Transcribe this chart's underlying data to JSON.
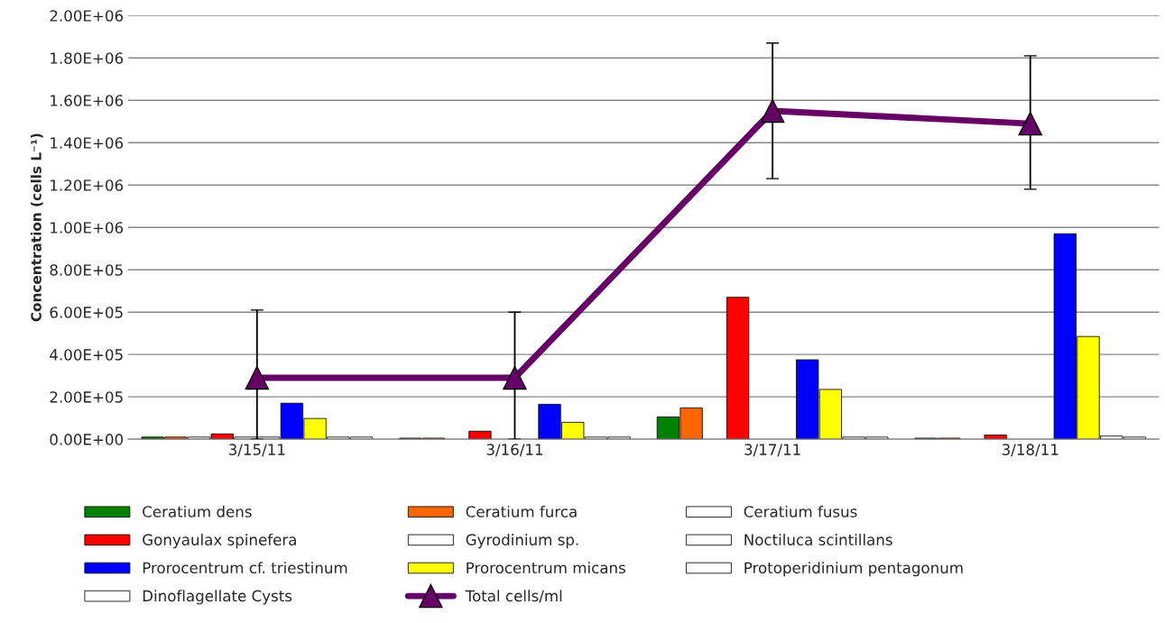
{
  "chart_data": {
    "type": "bar",
    "ylabel": "Concentration (cells L⁻¹)",
    "categories": [
      "3/15/11",
      "3/16/11",
      "3/17/11",
      "3/18/11"
    ],
    "ylim": [
      0,
      2000000
    ],
    "yticks": [
      {
        "value": 0,
        "label": "0.00E+00"
      },
      {
        "value": 200000,
        "label": "2.00E+05"
      },
      {
        "value": 400000,
        "label": "4.00E+05"
      },
      {
        "value": 600000,
        "label": "6.00E+05"
      },
      {
        "value": 800000,
        "label": "8.00E+05"
      },
      {
        "value": 1000000,
        "label": "1.00E+06"
      },
      {
        "value": 1200000,
        "label": "1.20E+06"
      },
      {
        "value": 1400000,
        "label": "1.40E+06"
      },
      {
        "value": 1600000,
        "label": "1.60E+06"
      },
      {
        "value": 1800000,
        "label": "1.80E+06"
      },
      {
        "value": 2000000,
        "label": "2.00E+06"
      }
    ],
    "grid": "y",
    "legend": "bottom",
    "series": [
      {
        "name": "Ceratium dens",
        "color": "#008000",
        "values": [
          10000,
          5000,
          105000,
          5000
        ]
      },
      {
        "name": "Ceratium furca",
        "color": "#ff6600",
        "values": [
          10000,
          5000,
          148000,
          5000
        ]
      },
      {
        "name": "Ceratium fusus",
        "color": "#ffffff",
        "values": [
          10000,
          null,
          null,
          null
        ]
      },
      {
        "name": "Gonyaulax spinefera",
        "color": "#ff0000",
        "values": [
          25000,
          38000,
          670000,
          20000
        ]
      },
      {
        "name": "Gyrodinium sp.",
        "color": "#ffffff",
        "values": [
          10000,
          null,
          null,
          null
        ]
      },
      {
        "name": "Noctiluca scintillans",
        "color": "#ffffff",
        "values": [
          10000,
          null,
          null,
          null
        ]
      },
      {
        "name": "Prorocentrum cf. triestinum",
        "color": "#0000ff",
        "values": [
          170000,
          165000,
          375000,
          970000
        ]
      },
      {
        "name": "Prorocentrum micans",
        "color": "#ffff00",
        "values": [
          98000,
          80000,
          235000,
          485000
        ]
      },
      {
        "name": "Protoperidinium pentagonum",
        "color": "#ffffff",
        "values": [
          10000,
          10000,
          10000,
          15000
        ]
      },
      {
        "name": "Dinoflagellate Cysts",
        "color": "#ffffff",
        "values": [
          10000,
          10000,
          10000,
          10000
        ]
      },
      {
        "name": "Total cells/ml",
        "type": "line",
        "color": "#660066",
        "marker": "triangle",
        "values": [
          290000,
          290000,
          1550000,
          1490000
        ],
        "errors": [
          [
            0,
            610000
          ],
          [
            0,
            600000
          ],
          [
            1230000,
            1870000
          ],
          [
            1180000,
            1810000
          ]
        ]
      }
    ]
  }
}
